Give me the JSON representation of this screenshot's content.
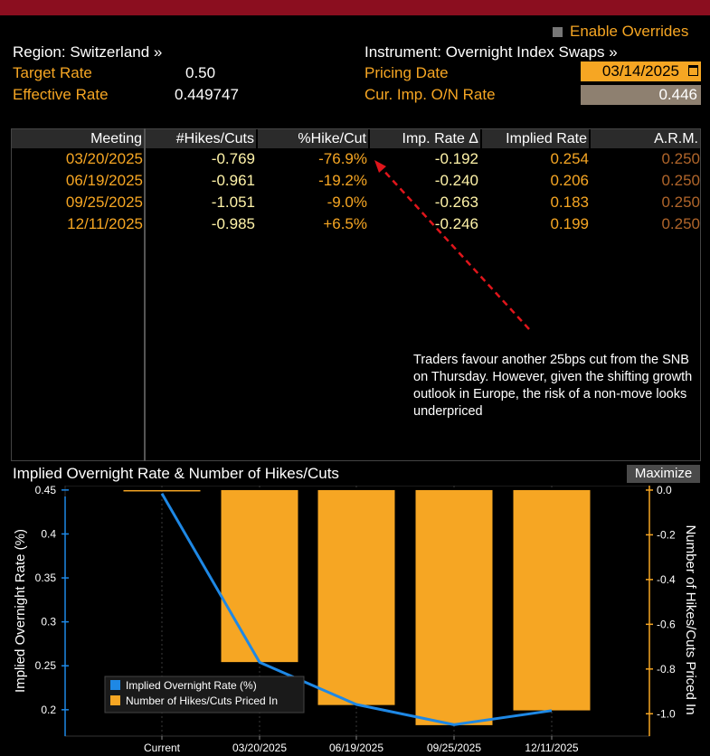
{
  "header": {
    "enable_overrides": "Enable Overrides",
    "region": "Region: Switzerland »",
    "instrument": "Instrument: Overnight Index Swaps »",
    "target_rate_label": "Target Rate",
    "target_rate_value": "0.50",
    "effective_rate_label": "Effective Rate",
    "effective_rate_value": "0.449747",
    "pricing_date_label": "Pricing Date",
    "pricing_date_value": "03/14/2025",
    "cur_imp_label": "Cur. Imp. O/N Rate",
    "cur_imp_value": "0.446"
  },
  "table": {
    "headers": [
      "Meeting",
      "#Hikes/Cuts",
      "%Hike/Cut",
      "Imp. Rate Δ",
      "Implied Rate",
      "A.R.M."
    ],
    "rows": [
      [
        "03/20/2025",
        "-0.769",
        "-76.9%",
        "-0.192",
        "0.254",
        "0.250"
      ],
      [
        "06/19/2025",
        "-0.961",
        "-19.2%",
        "-0.240",
        "0.206",
        "0.250"
      ],
      [
        "09/25/2025",
        "-1.051",
        "-9.0%",
        "-0.263",
        "0.183",
        "0.250"
      ],
      [
        "12/11/2025",
        "-0.985",
        "+6.5%",
        "-0.246",
        "0.199",
        "0.250"
      ]
    ]
  },
  "annotation": "Traders favour another 25bps cut from the SNB on Thursday. However, given the shifting growth outlook in Europe, the risk of a non-move looks underpriced",
  "chart_title": "Implied Overnight Rate & Number of Hikes/Cuts",
  "maximize_label": "Maximize",
  "colors": {
    "orange": "#f6a623",
    "blue": "#1e88e5",
    "header_bar": "#8b0e1f",
    "arrow": "#e0151b"
  },
  "chart_data": {
    "type": "bar",
    "categories": [
      "Current",
      "03/20/2025",
      "06/19/2025",
      "09/25/2025",
      "12/11/2025"
    ],
    "ylabel_left": "Implied Overnight Rate (%)",
    "ylabel_right": "Number of Hikes/Cuts Priced In",
    "ylim_left": [
      0.17,
      0.455
    ],
    "ylim_right": [
      -1.1,
      0.02
    ],
    "yticks_left": [
      "0.45",
      "0.4",
      "0.35",
      "0.3",
      "0.25",
      "0.2"
    ],
    "yticks_right": [
      "0.0",
      "-0.2",
      "-0.4",
      "-0.6",
      "-0.8",
      "-1.0"
    ],
    "legend_placement": "bottom-left",
    "series": [
      {
        "name": "Implied Overnight Rate (%)",
        "kind": "line",
        "axis": "left",
        "values": [
          0.446,
          0.254,
          0.206,
          0.183,
          0.199
        ]
      },
      {
        "name": "Number of Hikes/Cuts Priced In",
        "kind": "bar",
        "axis": "right",
        "values": [
          0.0,
          -0.769,
          -0.961,
          -1.051,
          -0.985
        ]
      }
    ]
  }
}
